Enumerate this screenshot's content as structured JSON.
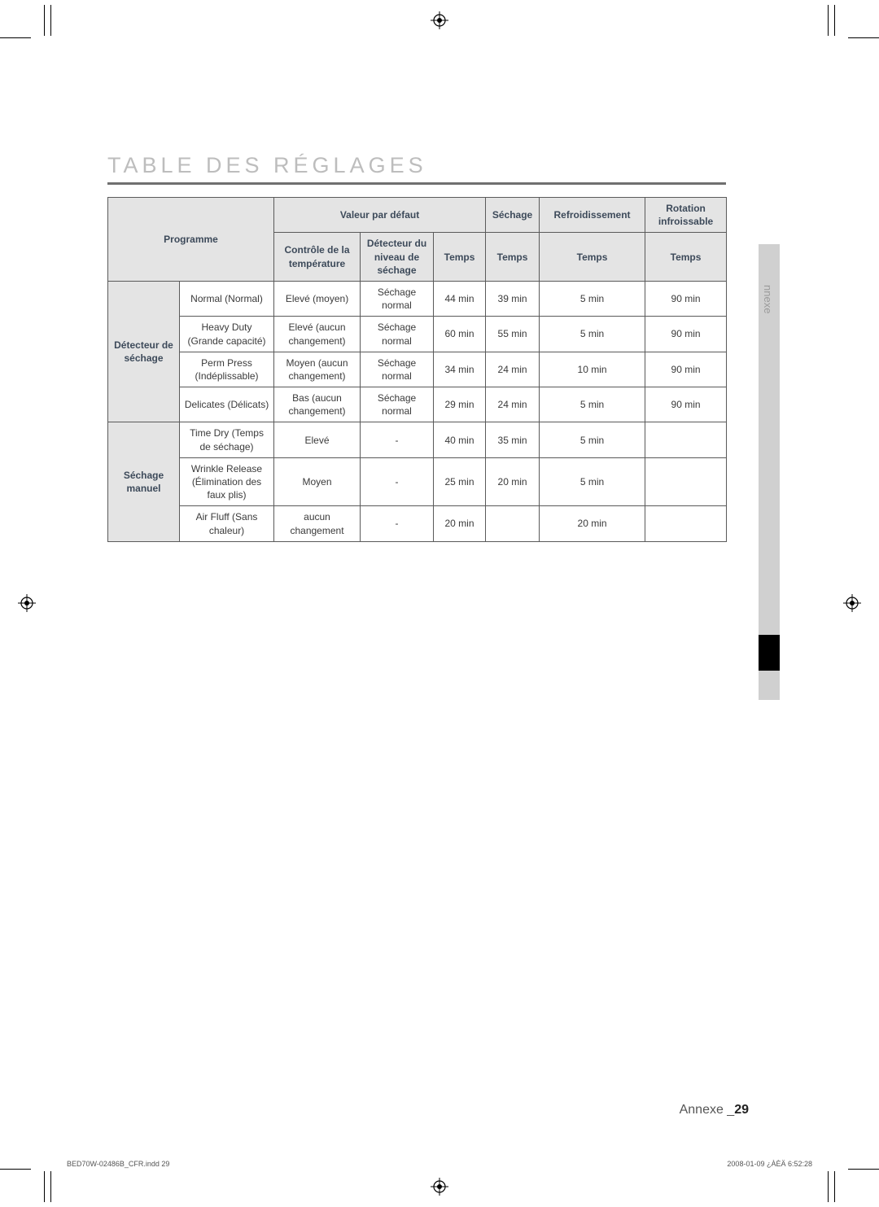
{
  "heading": "TABLE DES RÉGLAGES",
  "side_tab_label": "nnexe",
  "table": {
    "header_top": {
      "programme": "Programme",
      "valeur": "Valeur par défaut",
      "sechage": "Séchage",
      "refroid": "Refroidissement",
      "rotation": "Rotation infroissable"
    },
    "header_sub": {
      "controle": "Contrôle de la température",
      "detecteur": "Détecteur du niveau de séchage",
      "temps1": "Temps",
      "temps2": "Temps",
      "temps3": "Temps",
      "temps4": "Temps"
    },
    "groups": [
      {
        "label": "Détecteur de séchage",
        "rows": [
          {
            "prog": "Normal (Normal)",
            "ctrl": "Elevé (moyen)",
            "det": "Séchage normal",
            "t1": "44 min",
            "t2": "39 min",
            "t3": "5 min",
            "t4": "90 min"
          },
          {
            "prog": "Heavy Duty (Grande capacité)",
            "ctrl": "Elevé (aucun changement)",
            "det": "Séchage normal",
            "t1": "60 min",
            "t2": "55 min",
            "t3": "5 min",
            "t4": "90 min"
          },
          {
            "prog": "Perm Press (Indéplissable)",
            "ctrl": "Moyen (aucun changement)",
            "det": "Séchage normal",
            "t1": "34 min",
            "t2": "24 min",
            "t3": "10 min",
            "t4": "90 min"
          },
          {
            "prog": "Delicates (Délicats)",
            "ctrl": "Bas (aucun changement)",
            "det": "Séchage normal",
            "t1": "29 min",
            "t2": "24 min",
            "t3": "5 min",
            "t4": "90 min"
          }
        ]
      },
      {
        "label": "Séchage manuel",
        "rows": [
          {
            "prog": "Time Dry (Temps de séchage)",
            "ctrl": "Elevé",
            "det": "-",
            "t1": "40 min",
            "t2": "35 min",
            "t3": "5 min",
            "t4": ""
          },
          {
            "prog": "Wrinkle Release (Élimination des faux plis)",
            "ctrl": "Moyen",
            "det": "-",
            "t1": "25 min",
            "t2": "20 min",
            "t3": "5 min",
            "t4": ""
          },
          {
            "prog": "Air Fluff (Sans chaleur)",
            "ctrl": "aucun changement",
            "det": "-",
            "t1": "20 min",
            "t2": "",
            "t3": "20 min",
            "t4": ""
          }
        ]
      }
    ]
  },
  "footer": {
    "label": "Annexe _",
    "page": "29",
    "indd": "BED70W-02486B_CFR.indd   29",
    "date": "2008-01-09   ¿ÀÈÄ 6:52:28"
  }
}
